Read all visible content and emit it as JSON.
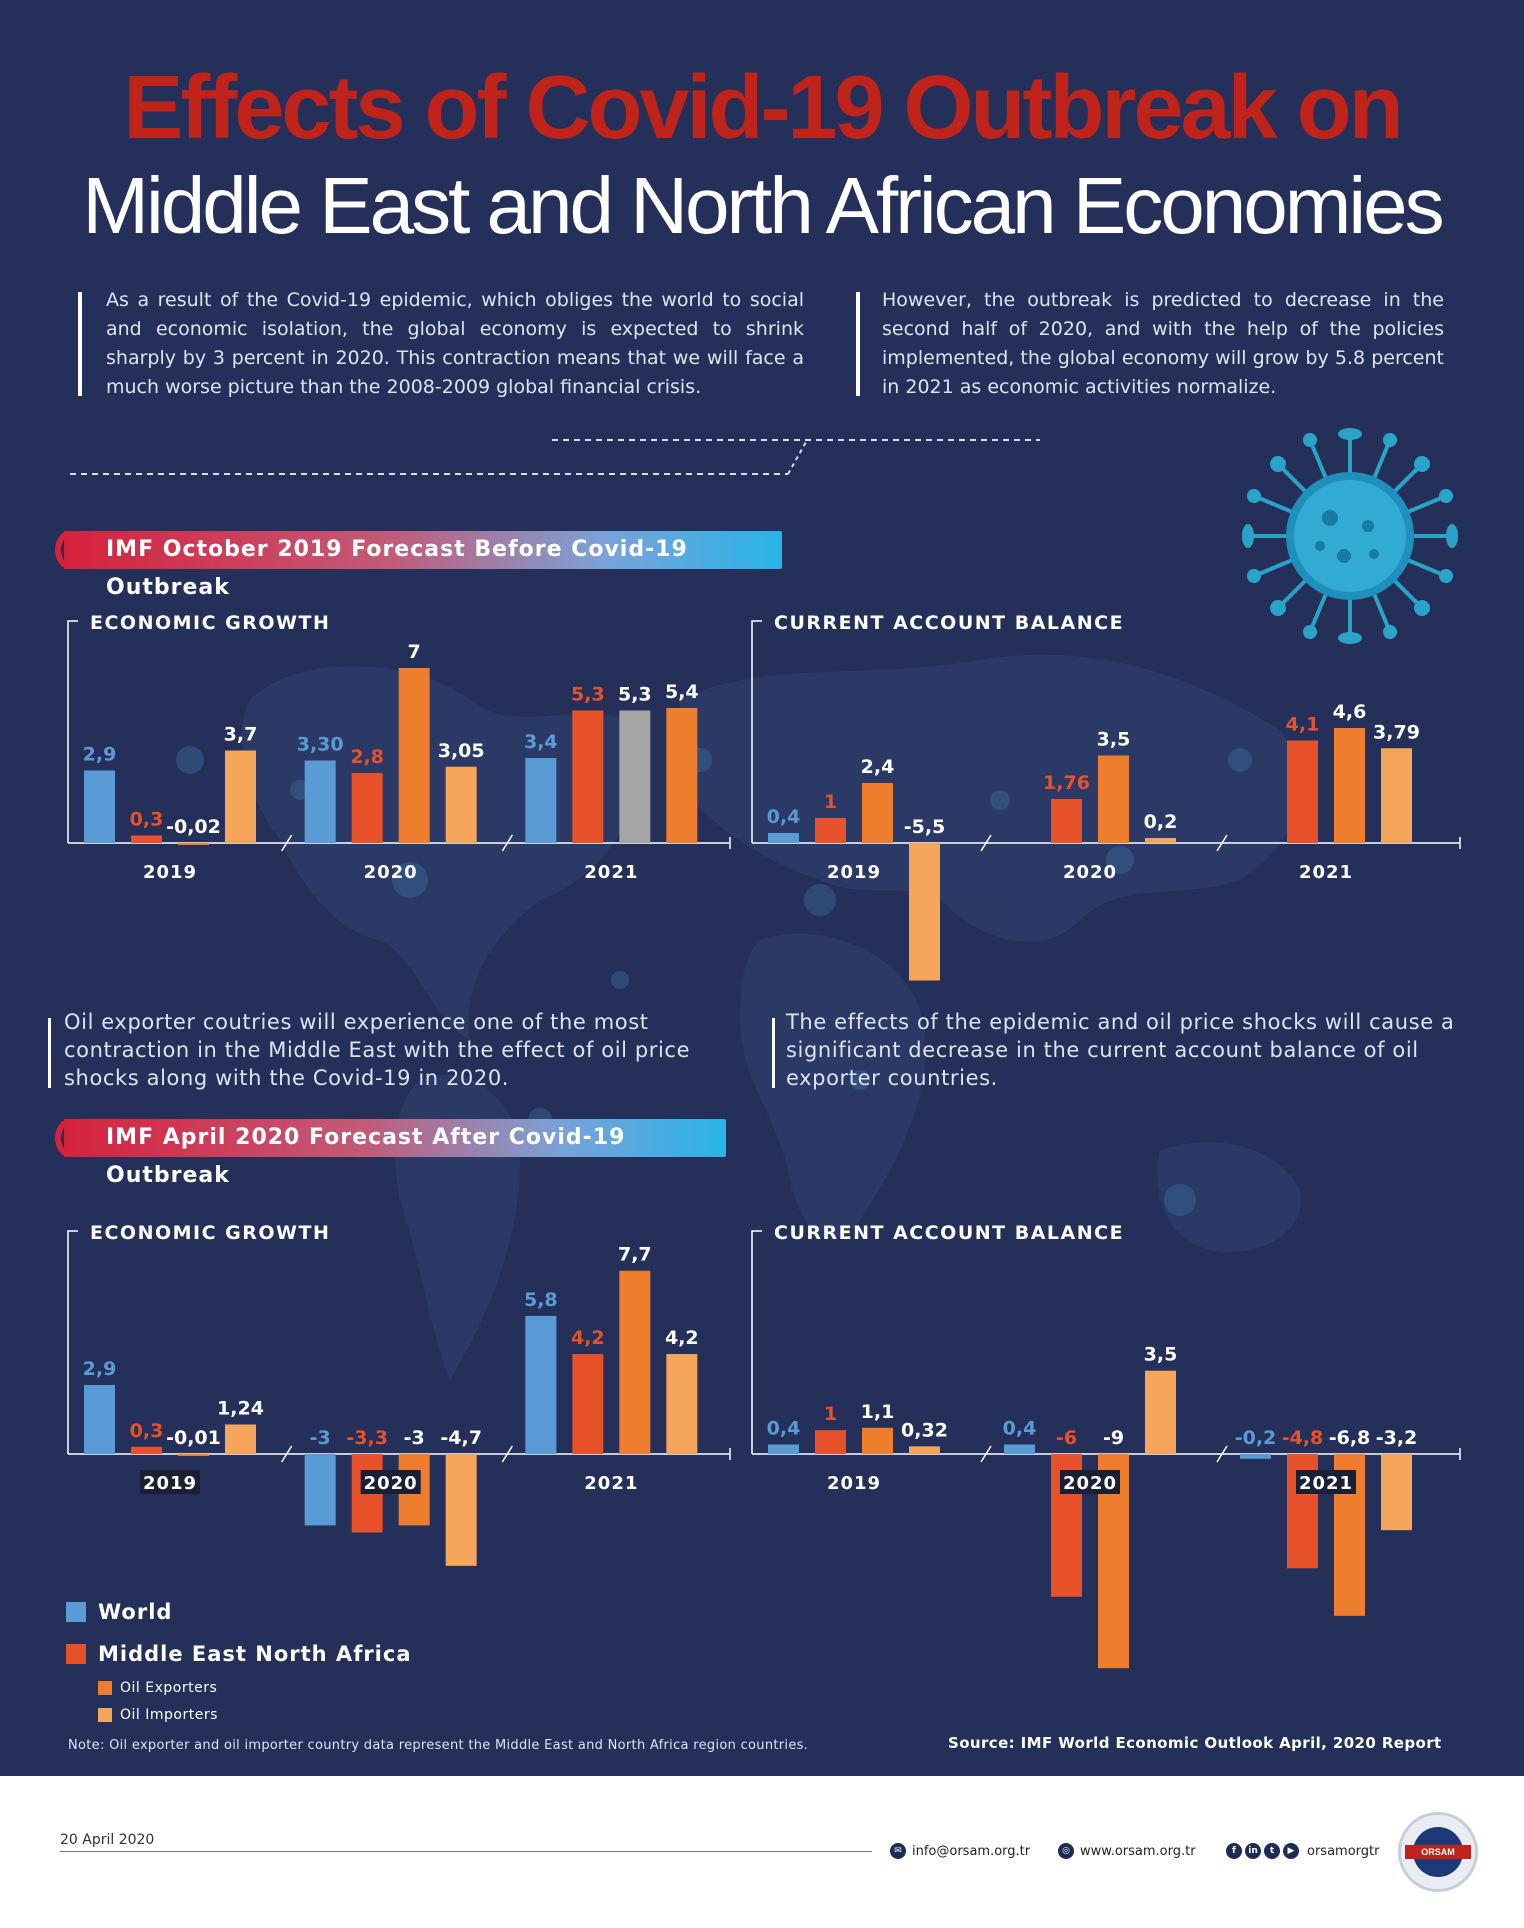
{
  "title_line1": "Effects of Covid-19 Outbreak on",
  "title_line2": "Middle East and North African Economies",
  "intro_left": "As a result of the Covid-19 epidemic, which obliges the world to social and economic isolation, the global economy is expected to shrink sharply by 3 percent in 2020. This contraction means that we will face a much worse picture than the 2008-2009 global financial crisis.",
  "intro_right": "However, the outbreak is predicted to decrease in the second half of 2020, and with the help of the policies implemented, the global economy will grow by 5.8 percent in 2021 as economic activities normalize.",
  "banner_before": "IMF October 2019 Forecast Before Covid-19 Outbreak",
  "banner_after": "IMF April 2020 Forecast After Covid-19 Outbreak",
  "mid_text_left": "Oil exporter coutries will experience one of the most contraction in the Middle East with the effect of oil price shocks along with the Covid-19 in 2020.",
  "mid_text_right": "The effects of the epidemic and oil price shocks will cause a significant decrease in the current account balance of oil exporter countries.",
  "colors": {
    "background": "#243059",
    "world": "#5b9bd5",
    "mena": "#e8522a",
    "oil_exporters": "#ef7d2e",
    "oil_importers": "#f5a65b",
    "gray": "#a6a6a6",
    "title_red": "#c0231a"
  },
  "legend": [
    {
      "label": "World",
      "color": "#5b9bd5",
      "size": "large"
    },
    {
      "label": "Middle East North Africa",
      "color": "#e8522a",
      "size": "large"
    },
    {
      "label": "Oil Exporters",
      "color": "#ef7d2e",
      "size": "small"
    },
    {
      "label": "Oil Importers",
      "color": "#f5a65b",
      "size": "small"
    }
  ],
  "note": "Note: Oil exporter and oil importer country data represent the Middle East and North Africa region countries.",
  "source": "Source: IMF World Economic Outlook April, 2020 Report",
  "footer": {
    "date": "20 April 2020",
    "email": "info@orsam.org.tr",
    "website": "www.orsam.org.tr",
    "social": "orsamorgtr",
    "logo_text": "ORSAM"
  },
  "chart_data": [
    {
      "id": "before_growth",
      "type": "bar",
      "title": "ECONOMIC GROWTH",
      "categories": [
        "2019",
        "2020",
        "2021"
      ],
      "series": [
        {
          "name": "World",
          "color": "#5b9bd5",
          "values": [
            2.9,
            3.3,
            3.4
          ],
          "labels": [
            "2,9",
            "3,30",
            "3,4"
          ]
        },
        {
          "name": "Middle East North Africa",
          "color": "#e8522a",
          "values": [
            0.3,
            2.8,
            5.3
          ],
          "labels": [
            "0,3",
            "2,8",
            "5,3"
          ]
        },
        {
          "name": "Oil Exporters",
          "color": "#ef7d2e",
          "values": [
            -0.02,
            7,
            5.3
          ],
          "labels": [
            "-0,02",
            "7",
            "5,3"
          ],
          "colors": [
            "#ef7d2e",
            "#ef7d2e",
            "#a6a6a6"
          ]
        },
        {
          "name": "Oil Importers",
          "color": "#f5a65b",
          "values": [
            3.7,
            3.05,
            5.4
          ],
          "labels": [
            "3,7",
            "3,05",
            "5,4"
          ],
          "colors": [
            "#f5a65b",
            "#f5a65b",
            "#ef7d2e"
          ]
        }
      ]
    },
    {
      "id": "before_account",
      "type": "bar",
      "title": "CURRENT ACCOUNT BALANCE",
      "categories": [
        "2019",
        "2020",
        "2021"
      ],
      "series": [
        {
          "name": "World",
          "color": "#5b9bd5",
          "values": [
            0.4,
            null,
            null
          ],
          "labels": [
            "0,4",
            "",
            ""
          ]
        },
        {
          "name": "Middle East North Africa",
          "color": "#e8522a",
          "values": [
            1,
            1.76,
            4.1
          ],
          "labels": [
            "1",
            "1,76",
            "4,1"
          ]
        },
        {
          "name": "Oil Exporters",
          "color": "#ef7d2e",
          "values": [
            2.4,
            3.5,
            4.6
          ],
          "labels": [
            "2,4",
            "3,5",
            "4,6"
          ]
        },
        {
          "name": "Oil Importers",
          "color": "#f5a65b",
          "values": [
            -5.5,
            0.2,
            3.79
          ],
          "labels": [
            "-5,5",
            "0,2",
            "3,79"
          ]
        }
      ]
    },
    {
      "id": "after_growth",
      "type": "bar",
      "title": "ECONOMIC GROWTH",
      "categories": [
        "2019",
        "2020",
        "2021"
      ],
      "series": [
        {
          "name": "World",
          "color": "#5b9bd5",
          "values": [
            2.9,
            -3,
            5.8
          ],
          "labels": [
            "2,9",
            "-3",
            "5,8"
          ]
        },
        {
          "name": "Middle East North Africa",
          "color": "#e8522a",
          "values": [
            0.3,
            -3.3,
            4.2
          ],
          "labels": [
            "0,3",
            "-3,3",
            "4,2"
          ]
        },
        {
          "name": "Oil Exporters",
          "color": "#ef7d2e",
          "values": [
            -0.01,
            -3,
            7.7
          ],
          "labels": [
            "-0,01",
            "-3",
            "7,7"
          ]
        },
        {
          "name": "Oil Importers",
          "color": "#f5a65b",
          "values": [
            1.24,
            -4.7,
            4.2
          ],
          "labels": [
            "1,24",
            "-4,7",
            "4,2"
          ]
        }
      ]
    },
    {
      "id": "after_account",
      "type": "bar",
      "title": "CURRENT ACCOUNT BALANCE",
      "categories": [
        "2019",
        "2020",
        "2021"
      ],
      "series": [
        {
          "name": "World",
          "color": "#5b9bd5",
          "values": [
            0.4,
            0.4,
            -0.2
          ],
          "labels": [
            "0,4",
            "0,4",
            "-0,2"
          ]
        },
        {
          "name": "Middle East North Africa",
          "color": "#e8522a",
          "values": [
            1,
            -6,
            -4.8
          ],
          "labels": [
            "1",
            "-6",
            "-4,8"
          ]
        },
        {
          "name": "Oil Exporters",
          "color": "#ef7d2e",
          "values": [
            1.1,
            -9,
            -6.8
          ],
          "labels": [
            "1,1",
            "-9",
            "-6,8"
          ]
        },
        {
          "name": "Oil Importers",
          "color": "#f5a65b",
          "values": [
            0.32,
            3.5,
            -3.2
          ],
          "labels": [
            "0,32",
            "3,5",
            "-3,2"
          ]
        }
      ]
    }
  ]
}
